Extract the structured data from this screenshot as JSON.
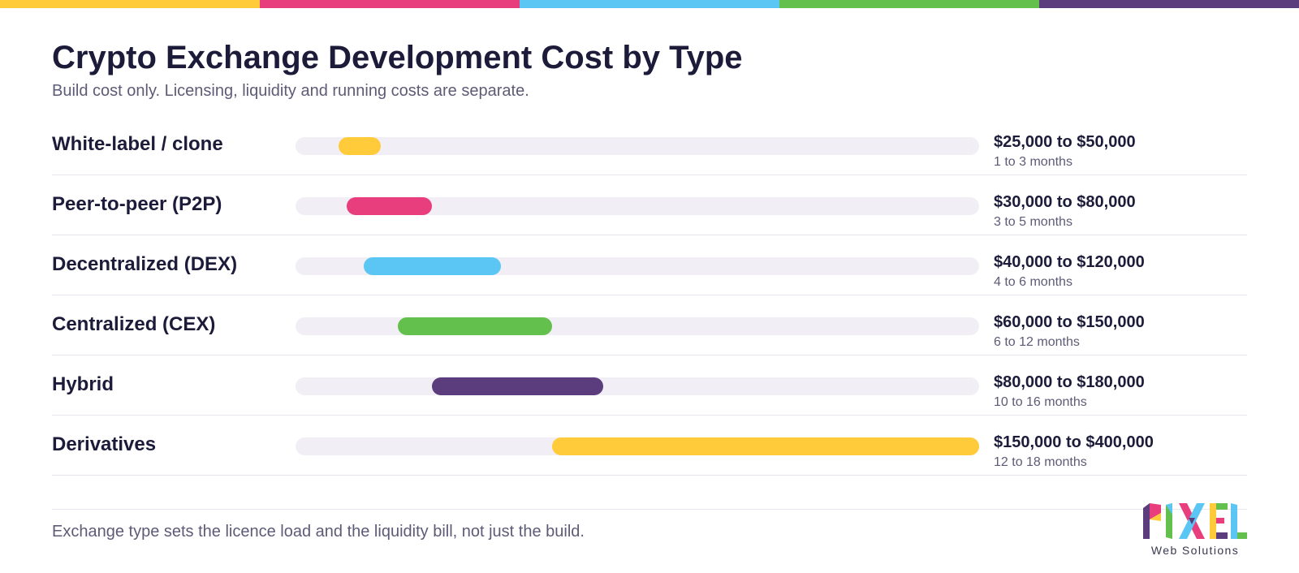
{
  "palette": {
    "yellow": "#ffcb3b",
    "pink": "#e83e7e",
    "sky": "#5bc6f4",
    "green": "#64c04c",
    "purple": "#5b3d7e"
  },
  "stripe_colors": [
    "#ffcb3b",
    "#e83e7e",
    "#5bc6f4",
    "#64c04c",
    "#5b3d7e"
  ],
  "title": "Crypto Exchange Development Cost by Type",
  "subtitle": "Build cost only. Licensing, liquidity and running costs are separate.",
  "footnote": "Exchange type sets the licence load and the liquidity bill, not just the build.",
  "logo": {
    "text": "PIXEL",
    "caption": "Web Solutions"
  },
  "chart_data": {
    "type": "bar",
    "orientation": "horizontal-range",
    "xlim": [
      0,
      400000
    ],
    "categories": [
      "White-label / clone",
      "Peer-to-peer (P2P)",
      "Decentralized (DEX)",
      "Centralized (CEX)",
      "Hybrid",
      "Derivatives"
    ],
    "series": [
      {
        "min": [
          25000,
          30000,
          40000,
          60000,
          80000,
          150000
        ],
        "max": [
          50000,
          80000,
          120000,
          150000,
          180000,
          400000
        ]
      }
    ],
    "range_labels": [
      "$25,000 to $50,000",
      "$30,000 to $80,000",
      "$40,000 to $120,000",
      "$60,000 to $150,000",
      "$80,000 to $180,000",
      "$150,000 to $400,000"
    ],
    "duration_labels": [
      "1 to 3 months",
      "3 to 5 months",
      "4 to 6 months",
      "6 to 12 months",
      "10 to 16 months",
      "12 to 18 months"
    ],
    "colors": [
      "#ffcb3b",
      "#e83e7e",
      "#5bc6f4",
      "#64c04c",
      "#5b3d7e",
      "#ffcb3b"
    ],
    "grid": false,
    "legend": "none"
  }
}
